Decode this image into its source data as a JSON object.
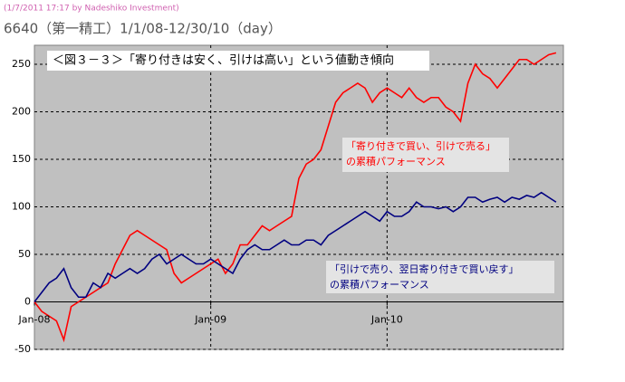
{
  "header": "(1/7/2011 17:17 by Nadeshiko Investment)",
  "chart_data": {
    "type": "line",
    "title": "6640（第一精工）1/1/08-12/30/10（day）",
    "subtitle": "＜図３－３＞「寄り付きは安く、引けは高い」という値動き傾向",
    "categories": [
      "Jan-08",
      null,
      null,
      null,
      null,
      null,
      null,
      null,
      null,
      null,
      null,
      null,
      null,
      null,
      null,
      null,
      null,
      null,
      null,
      null,
      null,
      null,
      null,
      null,
      "Jan-09",
      null,
      null,
      null,
      null,
      null,
      null,
      null,
      null,
      null,
      null,
      null,
      null,
      null,
      null,
      null,
      null,
      null,
      null,
      null,
      null,
      null,
      null,
      null,
      "Jan-10",
      null,
      null,
      null,
      null,
      null,
      null,
      null,
      null,
      null,
      null,
      null,
      null,
      null,
      null,
      null,
      null,
      null,
      null,
      null,
      null,
      null,
      null,
      null
    ],
    "series": [
      {
        "color": "#ff0000",
        "values": [
          0,
          -10,
          -15,
          -20,
          -40,
          -5,
          0,
          5,
          10,
          15,
          20,
          40,
          55,
          70,
          75,
          70,
          65,
          60,
          55,
          30,
          20,
          25,
          30,
          35,
          40,
          45,
          30,
          40,
          60,
          60,
          70,
          80,
          75,
          80,
          85,
          90,
          130,
          145,
          150,
          160,
          185,
          210,
          220,
          225,
          230,
          225,
          210,
          220,
          225,
          220,
          215,
          225,
          215,
          210,
          215,
          215,
          205,
          200,
          190,
          230,
          250,
          240,
          235,
          225,
          235,
          245,
          255,
          255,
          250,
          255,
          260,
          262
        ]
      },
      {
        "color": "#000080",
        "values": [
          0,
          10,
          20,
          25,
          35,
          15,
          5,
          5,
          20,
          15,
          30,
          25,
          30,
          35,
          30,
          35,
          45,
          50,
          40,
          45,
          50,
          45,
          40,
          40,
          45,
          40,
          35,
          30,
          45,
          55,
          60,
          55,
          55,
          60,
          65,
          60,
          60,
          65,
          65,
          60,
          70,
          75,
          80,
          85,
          90,
          95,
          90,
          85,
          95,
          90,
          90,
          95,
          105,
          100,
          100,
          98,
          100,
          95,
          100,
          110,
          110,
          105,
          108,
          110,
          105,
          110,
          108,
          112,
          110,
          115,
          110,
          105
        ]
      }
    ],
    "annotations": [
      {
        "lines": [
          "「寄り付きで買い、引けで売る」",
          "の累積パフォーマンス"
        ],
        "color": "#ff0000"
      },
      {
        "lines": [
          "「引けで売り、翌日寄り付きで買い戻す」",
          "の累積パフォーマンス"
        ],
        "color": "#000080"
      }
    ],
    "ylim": [
      -50,
      270
    ],
    "yticks": [
      -50,
      0,
      50,
      100,
      150,
      200,
      250
    ],
    "grid": true
  }
}
